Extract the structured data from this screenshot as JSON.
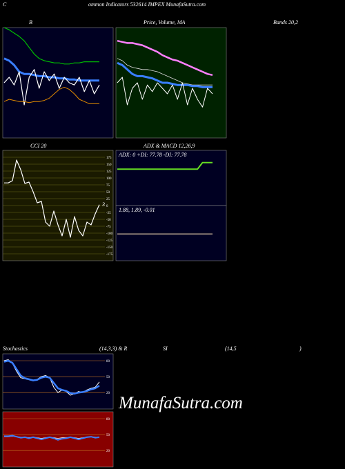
{
  "header": {
    "left": "C",
    "title": "ommon Indicators 532614 IMPEX MunafaSutra.com"
  },
  "titles": {
    "bollinger": "B",
    "price": "Price, Volume, MA",
    "bands": "Bands 20,2",
    "cci": "CCI 20",
    "adx_macd": "ADX  & MACD 12,26,9",
    "stoch": "Stochastics",
    "stoch_params": "(14,3,3) & R",
    "rsi": "SI",
    "rsi_params": "(14,5",
    "close": ")"
  },
  "watermark": "MunafaSutra.com",
  "chart_data": [
    {
      "type": "line",
      "background": "#000022",
      "ylim": [
        0,
        100
      ],
      "series": [
        {
          "color": "#00c000",
          "width": 1.2,
          "values": [
            100,
            98,
            95,
            92,
            88,
            82,
            76,
            72,
            70,
            69,
            68,
            68,
            67,
            67,
            68,
            68,
            69,
            69,
            69,
            69
          ]
        },
        {
          "color": "#3a7fff",
          "width": 3,
          "values": [
            72,
            70,
            66,
            60,
            58,
            58,
            57,
            56,
            56,
            55,
            55,
            54,
            54,
            53,
            53,
            52,
            52,
            52,
            52,
            52
          ]
        },
        {
          "color": "#ffffff",
          "width": 1.2,
          "values": [
            50,
            55,
            48,
            60,
            30,
            55,
            62,
            45,
            60,
            52,
            58,
            45,
            55,
            50,
            48,
            55,
            42,
            52,
            40,
            48
          ]
        },
        {
          "color": "#e08a00",
          "width": 1,
          "values": [
            33,
            35,
            34,
            33,
            33,
            32,
            33,
            33,
            34,
            36,
            40,
            44,
            46,
            44,
            40,
            35,
            33,
            31,
            31,
            31
          ]
        }
      ]
    },
    {
      "type": "line",
      "background": "#002200",
      "ylim": [
        0,
        100
      ],
      "series": [
        {
          "color": "#ff80ff",
          "width": 2.5,
          "values": [
            88,
            87,
            86,
            86,
            85,
            84,
            82,
            80,
            78,
            75,
            73,
            71,
            70,
            68,
            66,
            64,
            62,
            60,
            58,
            57
          ]
        },
        {
          "color": "#dddddd",
          "width": 0.8,
          "values": [
            72,
            70,
            66,
            64,
            63,
            62,
            62,
            61,
            60,
            58,
            56,
            54,
            52,
            50,
            49,
            48,
            48,
            48,
            48,
            48
          ]
        },
        {
          "color": "#3a7fff",
          "width": 3,
          "values": [
            68,
            66,
            62,
            58,
            56,
            56,
            55,
            54,
            52,
            50,
            50,
            49,
            48,
            48,
            48,
            47,
            47,
            46,
            46,
            46
          ]
        },
        {
          "color": "#ffffff",
          "width": 1,
          "values": [
            50,
            55,
            30,
            45,
            50,
            35,
            48,
            42,
            50,
            45,
            40,
            48,
            35,
            50,
            30,
            45,
            35,
            28,
            45,
            40
          ]
        }
      ]
    },
    {
      "type": "line",
      "background": "#1a1a00",
      "grid_color": "#6b6b1a",
      "ylim": [
        -200,
        200
      ],
      "yticks": [
        175,
        150,
        125,
        100,
        75,
        50,
        25,
        0,
        -25,
        -50,
        -75,
        -100,
        -125,
        -150,
        -175
      ],
      "series": [
        {
          "color": "#ffffff",
          "width": 1.2,
          "values": [
            82,
            82,
            90,
            165,
            130,
            80,
            85,
            50,
            10,
            15,
            -60,
            -75,
            -20,
            -70,
            -110,
            -50,
            -115,
            -40,
            -90,
            -110,
            -60,
            -70,
            -30,
            3
          ],
          "last_label": true
        }
      ]
    },
    {
      "type": "line",
      "background": "#000022",
      "ylim": [
        0,
        100
      ],
      "annotation": "ADX: 0  +DI: 77.78  -DI: 77.78",
      "series": [
        {
          "color": "#66dd22",
          "width": 2,
          "values": [
            66,
            66,
            66,
            66,
            66,
            66,
            66,
            66,
            66,
            66,
            66,
            66,
            66,
            66,
            66,
            66,
            66,
            77.78,
            77.78,
            77.78
          ]
        }
      ]
    },
    {
      "type": "line",
      "background": "#000022",
      "ylim": [
        -2,
        6
      ],
      "annotation": "1.88,  1.89,  -0.01",
      "series": [
        {
          "color": "#f5deb3",
          "width": 1.2,
          "values": [
            1.88,
            1.88,
            1.88,
            1.88,
            1.88,
            1.88,
            1.88,
            1.88,
            1.88,
            1.88,
            1.88,
            1.88,
            1.88,
            1.88,
            1.88,
            1.88,
            1.88,
            1.88,
            1.88,
            1.88
          ]
        }
      ]
    },
    {
      "type": "line",
      "background": "#000022",
      "grid_color": "#c07020",
      "ylim": [
        -11,
        93
      ],
      "yticks": [
        80,
        50,
        20
      ],
      "series": [
        {
          "color": "#ffffff",
          "width": 1,
          "values": [
            80,
            82,
            75,
            60,
            48,
            46,
            44,
            42,
            45,
            50,
            52,
            48,
            30,
            20,
            25,
            22,
            15,
            18,
            22,
            20,
            25,
            28,
            30,
            40
          ]
        },
        {
          "color": "#3a7fff",
          "width": 2.5,
          "values": [
            78,
            80,
            76,
            64,
            52,
            47,
            45,
            43,
            44,
            48,
            50,
            48,
            38,
            28,
            25,
            23,
            19,
            18,
            20,
            21,
            23,
            26,
            28,
            33
          ]
        }
      ]
    },
    {
      "type": "line",
      "background": "#880000",
      "grid_color": "#c07020",
      "ylim": [
        -11,
        93
      ],
      "yticks": [
        80,
        50,
        20
      ],
      "series": [
        {
          "color": "#ffffff",
          "width": 0.8,
          "values": [
            46,
            46,
            47,
            46,
            45,
            45,
            44,
            45,
            44,
            43,
            44,
            45,
            44,
            43,
            44,
            44,
            45,
            44,
            43,
            44,
            45,
            46,
            45,
            45
          ]
        },
        {
          "color": "#3a7fff",
          "width": 2,
          "values": [
            47,
            47,
            48,
            46,
            44,
            45,
            43,
            45,
            43,
            41,
            43,
            45,
            43,
            40,
            42,
            43,
            45,
            43,
            41,
            43,
            45,
            46,
            44,
            45
          ]
        }
      ]
    }
  ]
}
